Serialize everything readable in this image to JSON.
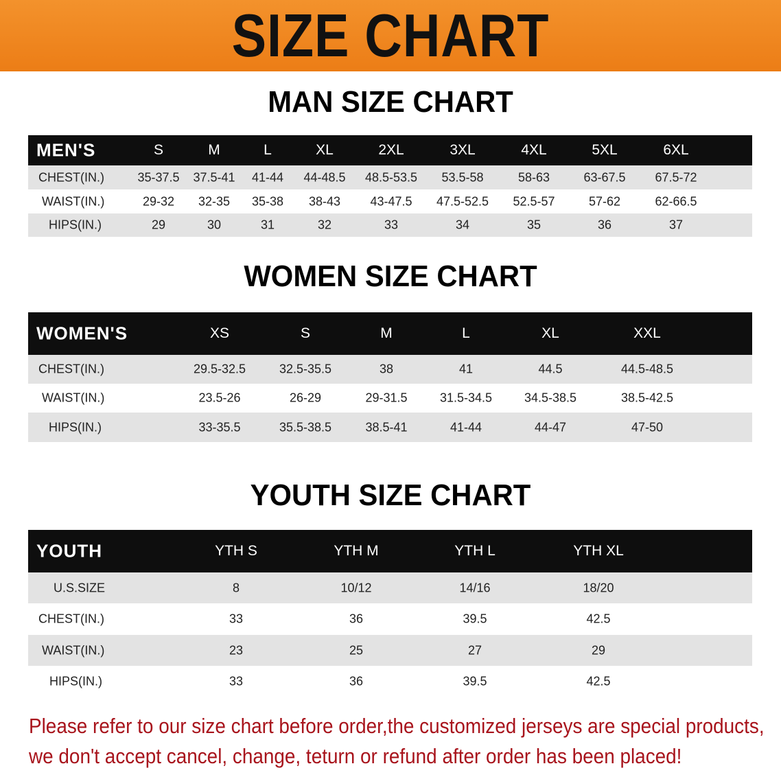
{
  "banner_title": "SIZE CHART",
  "men": {
    "title": "MAN SIZE CHART",
    "header": [
      "MEN'S",
      "S",
      "M",
      "L",
      "XL",
      "2XL",
      "3XL",
      "4XL",
      "5XL",
      "6XL"
    ],
    "rows": [
      [
        "CHEST(IN.)",
        "35-37.5",
        "37.5-41",
        "41-44",
        "44-48.5",
        "48.5-53.5",
        "53.5-58",
        "58-63",
        "63-67.5",
        "67.5-72"
      ],
      [
        "WAIST(IN.)",
        "29-32",
        "32-35",
        "35-38",
        "38-43",
        "43-47.5",
        "47.5-52.5",
        "52.5-57",
        "57-62",
        "62-66.5"
      ],
      [
        "HIPS(IN.)",
        "29",
        "30",
        "31",
        "32",
        "33",
        "34",
        "35",
        "36",
        "37"
      ]
    ]
  },
  "women": {
    "title": "WOMEN SIZE CHART",
    "header": [
      "WOMEN'S",
      "XS",
      "S",
      "M",
      "L",
      "XL",
      "XXL"
    ],
    "rows": [
      [
        "CHEST(IN.)",
        "29.5-32.5",
        "32.5-35.5",
        "38",
        "41",
        "44.5",
        "44.5-48.5"
      ],
      [
        "WAIST(IN.)",
        "23.5-26",
        "26-29",
        "29-31.5",
        "31.5-34.5",
        "34.5-38.5",
        "38.5-42.5"
      ],
      [
        "HIPS(IN.)",
        "33-35.5",
        "35.5-38.5",
        "38.5-41",
        "41-44",
        "44-47",
        "47-50"
      ]
    ]
  },
  "youth": {
    "title": "YOUTH SIZE CHART",
    "header": [
      "YOUTH",
      "YTH S",
      "YTH M",
      "YTH L",
      "YTH XL"
    ],
    "rows": [
      [
        "U.S.SIZE",
        "8",
        "10/12",
        "14/16",
        "18/20"
      ],
      [
        "CHEST(IN.)",
        "33",
        "36",
        "39.5",
        "42.5"
      ],
      [
        "WAIST(IN.)",
        "23",
        "25",
        "27",
        "29"
      ],
      [
        "HIPS(IN.)",
        "33",
        "36",
        "39.5",
        "42.5"
      ]
    ]
  },
  "note": {
    "line1": "Please refer to our size chart before order,the customized jerseys are special products,",
    "line2": "we don't accept cancel, change, teturn or refund after order has been placed!"
  },
  "colors": {
    "banner": "#ee8420",
    "header_row": "#0e0e0e",
    "stripe": "#e3e3e3",
    "note": "#a8141c"
  }
}
